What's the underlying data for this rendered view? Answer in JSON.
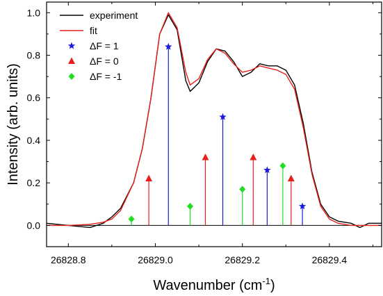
{
  "chart_data": {
    "type": "line",
    "xlabel": "Wavenumber (cm",
    "xlabel_sup": "-1",
    "xlabel_end": ")",
    "ylabel": "Intensity (arb. units)",
    "xlim": [
      26828.75,
      26829.52
    ],
    "ylim": [
      -0.1,
      1.05
    ],
    "x_ticks": [
      26828.8,
      26829.0,
      26829.2,
      26829.4
    ],
    "x_tick_labels": [
      "26828.8",
      "26829.0",
      "26829.2",
      "26829.4"
    ],
    "y_ticks": [
      0.0,
      0.2,
      0.4,
      0.6,
      0.8,
      1.0
    ],
    "y_tick_labels": [
      "0.0",
      "0.2",
      "0.4",
      "0.6",
      "0.8",
      "1.0"
    ],
    "grid": false,
    "legend_position": "top-left",
    "series": [
      {
        "name": "experiment",
        "kind": "line",
        "color": "#000000",
        "x": [
          26828.75,
          26828.8,
          26828.85,
          26828.88,
          26828.9,
          26828.92,
          26828.95,
          26828.97,
          26828.99,
          26829.01,
          26829.03,
          26829.05,
          26829.07,
          26829.08,
          26829.1,
          26829.12,
          26829.14,
          26829.16,
          26829.18,
          26829.2,
          26829.22,
          26829.24,
          26829.26,
          26829.28,
          26829.3,
          26829.32,
          26829.34,
          26829.36,
          26829.38,
          26829.4,
          26829.42,
          26829.45,
          26829.47,
          26829.49,
          26829.52
        ],
        "y": [
          0.01,
          0.0,
          -0.01,
          0.01,
          0.04,
          0.08,
          0.2,
          0.36,
          0.6,
          0.9,
          0.99,
          0.92,
          0.68,
          0.63,
          0.67,
          0.77,
          0.83,
          0.82,
          0.77,
          0.7,
          0.72,
          0.76,
          0.75,
          0.75,
          0.73,
          0.66,
          0.48,
          0.25,
          0.1,
          0.04,
          0.02,
          0.01,
          -0.01,
          0.01,
          0.01
        ]
      },
      {
        "name": "fit",
        "kind": "line",
        "color": "#e8201c",
        "x": [
          26828.75,
          26828.8,
          26828.85,
          26828.88,
          26828.9,
          26828.92,
          26828.95,
          26828.97,
          26828.99,
          26829.01,
          26829.03,
          26829.05,
          26829.07,
          26829.08,
          26829.1,
          26829.12,
          26829.14,
          26829.16,
          26829.18,
          26829.2,
          26829.22,
          26829.24,
          26829.26,
          26829.28,
          26829.3,
          26829.32,
          26829.34,
          26829.36,
          26829.38,
          26829.4,
          26829.42,
          26829.45,
          26829.47,
          26829.49,
          26829.52
        ],
        "y": [
          0.0,
          0.0,
          0.005,
          0.015,
          0.03,
          0.07,
          0.2,
          0.36,
          0.6,
          0.9,
          1.0,
          0.93,
          0.72,
          0.66,
          0.69,
          0.78,
          0.83,
          0.81,
          0.76,
          0.72,
          0.73,
          0.75,
          0.74,
          0.73,
          0.71,
          0.64,
          0.46,
          0.24,
          0.09,
          0.03,
          0.01,
          0.0,
          0.0,
          0.0,
          0.0
        ]
      },
      {
        "name": "ΔF = 1",
        "kind": "stem",
        "marker": "star",
        "color": "#1a1adc",
        "x": [
          26829.03,
          26829.155,
          26829.257,
          26829.338
        ],
        "y": [
          0.84,
          0.51,
          0.26,
          0.09
        ]
      },
      {
        "name": "ΔF = 0",
        "kind": "stem",
        "marker": "triangle",
        "color": "#e8201c",
        "x": [
          26828.985,
          26829.115,
          26829.225,
          26829.312
        ],
        "y": [
          0.22,
          0.32,
          0.32,
          0.22
        ]
      },
      {
        "name": "ΔF = -1",
        "kind": "stem",
        "marker": "diamond",
        "color": "#22dd22",
        "x": [
          26828.945,
          26829.08,
          26829.2,
          26829.293
        ],
        "y": [
          0.03,
          0.09,
          0.17,
          0.28
        ]
      }
    ]
  }
}
